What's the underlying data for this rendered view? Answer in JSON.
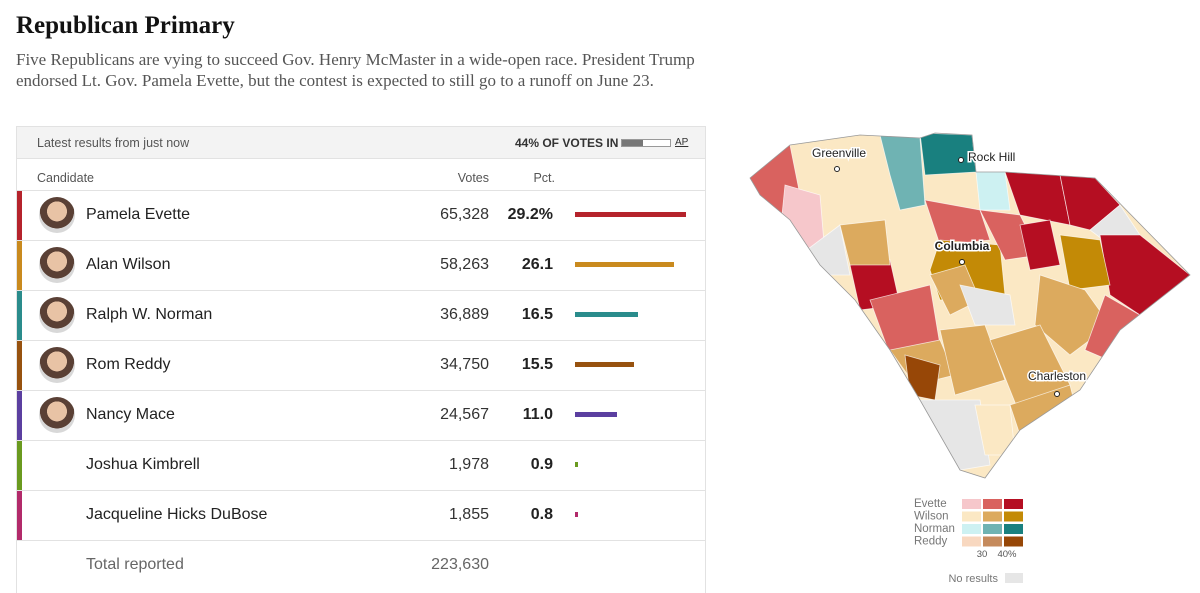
{
  "header": {
    "title": "Republican Primary",
    "subtitle": "Five Republicans are vying to succeed Gov. Henry McMaster in a wide-open race. President Trump endorsed Lt. Gov. Pamela Evette, but the contest is expected to still go to a runoff on June 23."
  },
  "results": {
    "status": "Latest results from just now",
    "reporting": {
      "value": 44,
      "label": "44% OF VOTES IN"
    },
    "source": "AP",
    "columns": {
      "candidate": "Candidate",
      "votes": "Votes",
      "pct": "Pct."
    },
    "rows": [
      {
        "name": "Pamela Evette",
        "votes": "65,328",
        "pct": {
          "value": 29.2,
          "label": "29.2%"
        },
        "color": "#b5232c",
        "photo": true
      },
      {
        "name": "Alan Wilson",
        "votes": "58,263",
        "pct": {
          "value": 26.1,
          "label": "26.1"
        },
        "color": "#c98a1e",
        "photo": true
      },
      {
        "name": "Ralph W. Norman",
        "votes": "36,889",
        "pct": {
          "value": 16.5,
          "label": "16.5"
        },
        "color": "#2a8c8c",
        "photo": true
      },
      {
        "name": "Rom Reddy",
        "votes": "34,750",
        "pct": {
          "value": 15.5,
          "label": "15.5"
        },
        "color": "#97520f",
        "photo": true
      },
      {
        "name": "Nancy Mace",
        "votes": "24,567",
        "pct": {
          "value": 11.0,
          "label": "11.0"
        },
        "color": "#5b3fa0",
        "photo": true
      },
      {
        "name": "Joshua Kimbrell",
        "votes": "1,978",
        "pct": {
          "value": 0.9,
          "label": "0.9"
        },
        "color": "#6a9a1f",
        "photo": false
      },
      {
        "name": "Jacqueline Hicks DuBose",
        "votes": "1,855",
        "pct": {
          "value": 0.8,
          "label": "0.8"
        },
        "color": "#b22a6a",
        "photo": false
      }
    ],
    "total": {
      "label": "Total reported",
      "votes": "223,630"
    }
  },
  "map": {
    "cities": [
      "Greenville",
      "Rock Hill",
      "Columbia",
      "Charleston"
    ],
    "legend": {
      "entries": [
        {
          "name": "Evette",
          "colors": [
            "#f6c7cb",
            "#d9625f",
            "#b50e22"
          ]
        },
        {
          "name": "Wilson",
          "colors": [
            "#fbe8c4",
            "#dcaa5e",
            "#c38a06"
          ]
        },
        {
          "name": "Norman",
          "colors": [
            "#cdf1f2",
            "#6fb3b3",
            "#19807f"
          ]
        },
        {
          "name": "Reddy",
          "colors": [
            "#f8d8c0",
            "#c58a5c",
            "#974707"
          ]
        }
      ],
      "scale_labels": [
        "30",
        "40%"
      ],
      "no_results": "No results"
    }
  }
}
